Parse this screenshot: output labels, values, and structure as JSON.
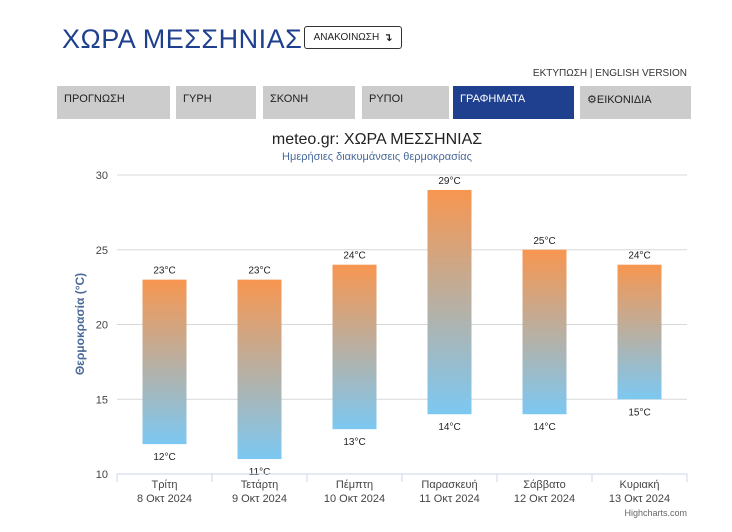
{
  "header": {
    "title": "ΧΩΡΑ ΜΕΣΣΗΝΙΑΣ",
    "announce_label": "ΑΝΑΚΟΙΝΩΣΗ",
    "announce_icon": "arrow-turn-icon",
    "print_label": "ΕΚΤΥΠΩΣΗ",
    "separator": "|",
    "english_label": "ENGLISH VERSION"
  },
  "tabs": [
    {
      "label": "ΠΡΟΓΝΩΣΗ",
      "active": false
    },
    {
      "label": "ΓΥΡΗ",
      "active": false
    },
    {
      "label": "ΣΚΟΝΗ",
      "active": false
    },
    {
      "label": "ΡΥΠΟΙ",
      "active": false
    },
    {
      "label": "ΓΡΑΦΗΜΑΤΑ",
      "active": true
    },
    {
      "label": "ΕΙΚΟΝΙΔΙΑ",
      "active": false,
      "icon": "gear-icon"
    }
  ],
  "colors": {
    "brand_blue": "#1f3f8f",
    "bar_top": "#f79650",
    "bar_bottom": "#7cc8f2",
    "tab_bg": "#cccccc",
    "axis_title": "#4a6a9a"
  },
  "chart_data": {
    "type": "columnrange",
    "title": "meteo.gr: ΧΩΡΑ ΜΕΣΣΗΝΙΑΣ",
    "subtitle": "Ημερήσιες διακυμάνσεις θερμοκρασίας",
    "ylabel": "Θερμοκρασία (°C)",
    "ylim": [
      10,
      30
    ],
    "yticks": [
      10,
      15,
      20,
      25,
      30
    ],
    "grid": true,
    "categories": [
      {
        "day": "Τρίτη",
        "date": "8 Οκτ 2024"
      },
      {
        "day": "Τετάρτη",
        "date": "9 Οκτ 2024"
      },
      {
        "day": "Πέμπτη",
        "date": "10 Οκτ 2024"
      },
      {
        "day": "Παρασκευή",
        "date": "11 Οκτ 2024"
      },
      {
        "day": "Σάββατο",
        "date": "12 Οκτ 2024"
      },
      {
        "day": "Κυριακή",
        "date": "13 Οκτ 2024"
      }
    ],
    "low": [
      12,
      11,
      13,
      14,
      14,
      15
    ],
    "high": [
      23,
      23,
      24,
      29,
      25,
      24
    ],
    "low_labels": [
      "12°C",
      "11°C",
      "13°C",
      "14°C",
      "14°C",
      "15°C"
    ],
    "high_labels": [
      "23°C",
      "23°C",
      "24°C",
      "29°C",
      "25°C",
      "24°C"
    ]
  },
  "footer": {
    "credits": "Highcharts.com"
  }
}
